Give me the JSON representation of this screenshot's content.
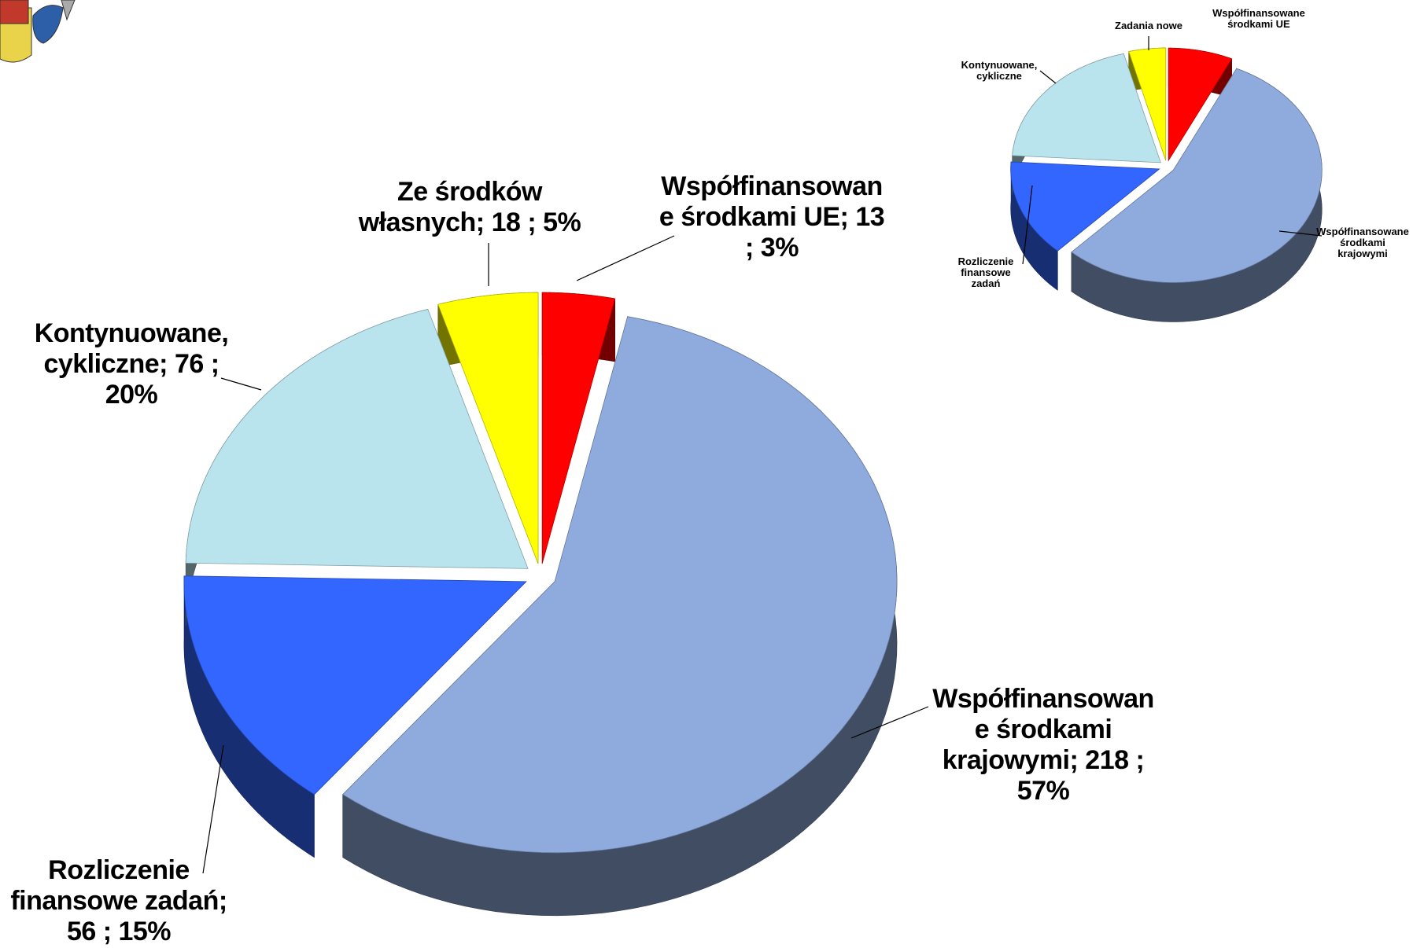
{
  "chart_data": [
    {
      "type": "pie",
      "categories": [
        "Współfinansowane środkami UE;",
        "Współfinansowane środkami krajowymi;",
        "Rozliczenie finansowe zadań;",
        "Kontynuowane, cykliczne;",
        "Ze środków własnych;"
      ],
      "values": [
        13,
        218,
        56,
        76,
        18
      ],
      "value_labels": [
        "13 ; 3%",
        "218 ; 57%",
        "56 ; 15%",
        "76 ; 20%",
        "18 ; 5%"
      ],
      "colors": [
        "#ff0000",
        "#8faadc",
        "#3366ff",
        "#b9e4ee",
        "#ffff00"
      ]
    },
    {
      "type": "pie",
      "categories": [
        "Współfinansowane środkami UE",
        "Współfinansowane środkami krajowymi",
        "Rozliczenie finansowe zadań",
        "Kontynuowane, cykliczne",
        "Zadania nowe"
      ],
      "values": [
        7,
        55,
        14,
        20,
        4
      ],
      "colors": [
        "#ff0000",
        "#8faadc",
        "#3366ff",
        "#b9e4ee",
        "#ffff00"
      ]
    }
  ]
}
